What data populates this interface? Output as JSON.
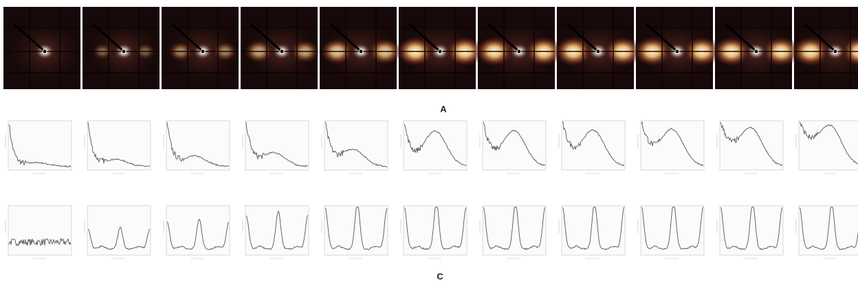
{
  "labels": {
    "row_a": "A",
    "row_c": "C"
  }
}
